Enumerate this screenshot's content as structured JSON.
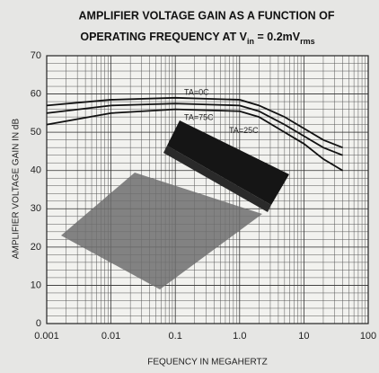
{
  "chart_data": {
    "type": "line",
    "title": "AMPLIFIER VOLTAGE GAIN AS A FUNCTION OF",
    "subtitle": [
      {
        "text": "OPERATING FREQUENCY AT V"
      },
      {
        "text": "in",
        "sub": true
      },
      {
        "text": " = 0.2mV"
      },
      {
        "text": "rms",
        "sub": true
      }
    ],
    "x_label": "FEQUENCY IN MEGAHERTZ",
    "y_label": "AMPLIFIER VOLTAGE GAIN IN dB",
    "x_scale": "log",
    "x": [
      0.001,
      0.01,
      0.1,
      1,
      2,
      5,
      10,
      20,
      40
    ],
    "series": [
      {
        "name": "TA=0C",
        "color": "#111111",
        "values": [
          57,
          58.5,
          59,
          58.5,
          57,
          54,
          51,
          48,
          46
        ]
      },
      {
        "name": "TA=75C",
        "color": "#111111",
        "values": [
          55,
          57,
          57.5,
          57,
          55.5,
          52,
          49,
          46,
          44
        ]
      },
      {
        "name": "TA=25C",
        "color": "#111111",
        "values": [
          52,
          55,
          56,
          55.5,
          54,
          50,
          47,
          43,
          40
        ]
      }
    ],
    "xlim": [
      0.001,
      100
    ],
    "xticks": [
      0.001,
      0.01,
      0.1,
      {
        "value": 1,
        "label": "1.0"
      },
      10,
      100
    ],
    "ylim": [
      0,
      70
    ],
    "yticks": [
      0,
      10,
      20,
      30,
      40,
      50,
      60,
      70
    ],
    "grid": true
  }
}
